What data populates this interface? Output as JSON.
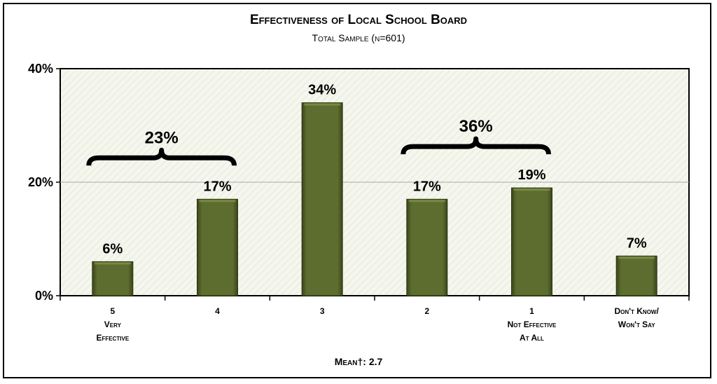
{
  "chart_data": {
    "type": "bar",
    "title": "Effectiveness of Local School Board",
    "subtitle": "Total Sample (n=601)",
    "categories": [
      [
        "5",
        "Very",
        "Effective"
      ],
      [
        "4"
      ],
      [
        "3"
      ],
      [
        "2"
      ],
      [
        "1",
        "Not Effective",
        "At All"
      ],
      [
        "Don't Know/",
        "Won't Say"
      ]
    ],
    "values": [
      6,
      17,
      34,
      17,
      19,
      7
    ],
    "value_labels": [
      "6%",
      "17%",
      "34%",
      "17%",
      "19%",
      "7%"
    ],
    "ylim": [
      0,
      40
    ],
    "yticks": [
      0,
      20,
      40
    ],
    "ytick_labels": [
      "0%",
      "20%",
      "40%"
    ],
    "grid": true,
    "brackets": [
      {
        "span": [
          0,
          1
        ],
        "label": "23%"
      },
      {
        "span": [
          3,
          4
        ],
        "label": "36%"
      }
    ],
    "footer": "Mean†: 2.7",
    "colors": {
      "bar": "#5b6b2e",
      "bar_dark": "#3a4519",
      "plot_bg": "#f4f5ec",
      "grid": "#a8a8a8"
    }
  }
}
